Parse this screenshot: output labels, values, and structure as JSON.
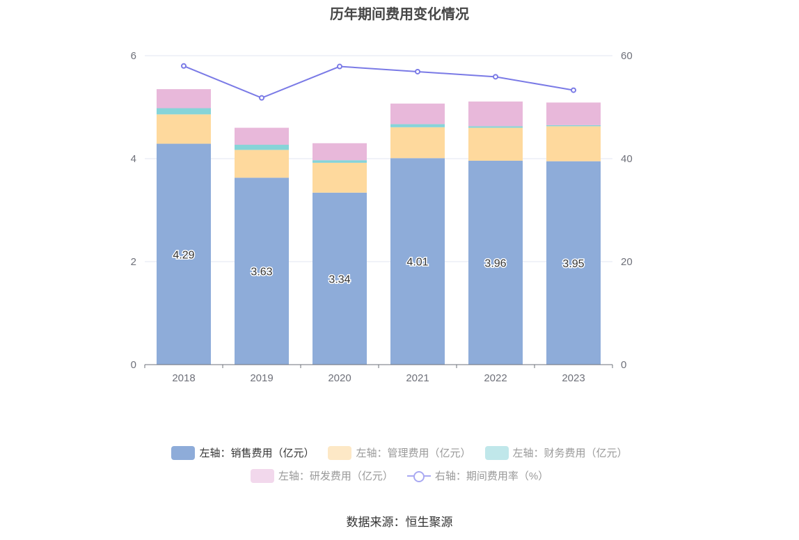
{
  "chart_data": {
    "type": "bar",
    "stacked": true,
    "title": "历年期间费用变化情况",
    "categories": [
      "2018",
      "2019",
      "2020",
      "2021",
      "2022",
      "2023"
    ],
    "series": [
      {
        "name": "左轴：销售费用（亿元）",
        "axis": "left",
        "type": "bar",
        "color": "#8eacd9",
        "values": [
          4.29,
          3.63,
          3.34,
          4.01,
          3.96,
          3.95
        ],
        "labels": [
          "4.29",
          "3.63",
          "3.34",
          "4.01",
          "3.96",
          "3.95"
        ]
      },
      {
        "name": "左轴：管理费用（亿元）",
        "axis": "left",
        "type": "bar",
        "color": "#fed99d",
        "values": [
          0.57,
          0.54,
          0.58,
          0.6,
          0.64,
          0.68
        ]
      },
      {
        "name": "左轴：财务费用（亿元）",
        "axis": "left",
        "type": "bar",
        "color": "#86d4d8",
        "values": [
          0.12,
          0.1,
          0.05,
          0.06,
          0.03,
          0.02
        ]
      },
      {
        "name": "左轴：研发费用（亿元）",
        "axis": "left",
        "type": "bar",
        "color": "#e8b8da",
        "values": [
          0.37,
          0.33,
          0.33,
          0.4,
          0.48,
          0.44
        ]
      },
      {
        "name": "右轴：期间费用率（%）",
        "axis": "right",
        "type": "line",
        "color": "#7a7ae6",
        "values": [
          58.0,
          51.8,
          57.9,
          56.9,
          55.9,
          53.3
        ]
      }
    ],
    "y_left": {
      "min": 0,
      "max": 6,
      "ticks": [
        "0",
        "2",
        "4",
        "6"
      ]
    },
    "y_right": {
      "min": 0,
      "max": 60,
      "ticks": [
        "0",
        "20",
        "40",
        "60"
      ]
    },
    "legend_position": "bottom-center",
    "grid": true
  },
  "legend": {
    "items": [
      {
        "label": "左轴：销售费用（亿元）",
        "color": "#8eacd9"
      },
      {
        "label": "左轴：管理费用（亿元）",
        "color": "#fde8c6"
      },
      {
        "label": "左轴：财务费用（亿元）",
        "color": "#c0e7ea"
      },
      {
        "label": "左轴：研发费用（亿元）",
        "color": "#f2d8ec"
      },
      {
        "label": "右轴：期间费用率（%）",
        "color": "#a9a9f2"
      }
    ]
  },
  "source": "数据来源：恒生聚源"
}
